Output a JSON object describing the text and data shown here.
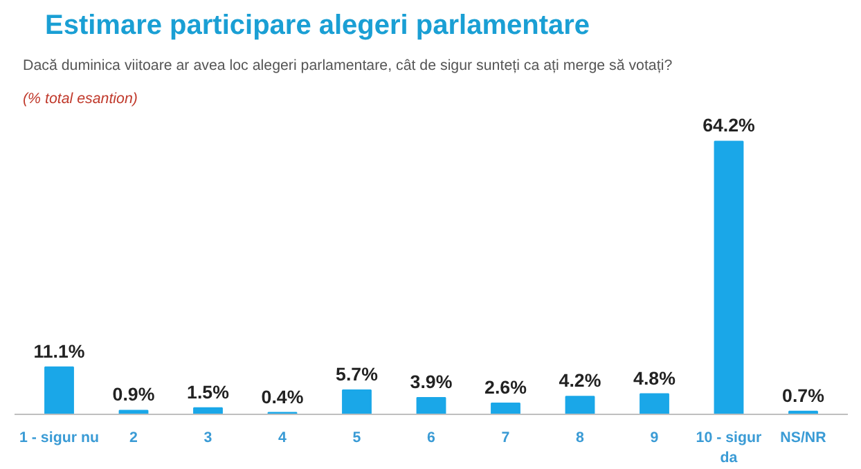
{
  "chart_data": {
    "type": "bar",
    "title": "Estimare participare alegeri parlamentare",
    "subtitle": "Dacă duminica viitoare ar avea loc alegeri parlamentare, cât de sigur sunteți ca ați merge să votați?",
    "annotations": [
      "(% total esantion)"
    ],
    "categories": [
      "1 - sigur nu",
      "2",
      "3",
      "4",
      "5",
      "6",
      "7",
      "8",
      "9",
      "10 - sigur da",
      "NS/NR"
    ],
    "values": [
      11.1,
      0.9,
      1.5,
      0.4,
      5.7,
      3.9,
      2.6,
      4.2,
      4.8,
      64.2,
      0.7
    ],
    "value_labels": [
      "11.1%",
      "0.9%",
      "1.5%",
      "0.4%",
      "5.7%",
      "3.9%",
      "2.6%",
      "4.2%",
      "4.8%",
      "64.2%",
      "0.7%"
    ],
    "color": "#1aa7e8",
    "grid": false
  }
}
